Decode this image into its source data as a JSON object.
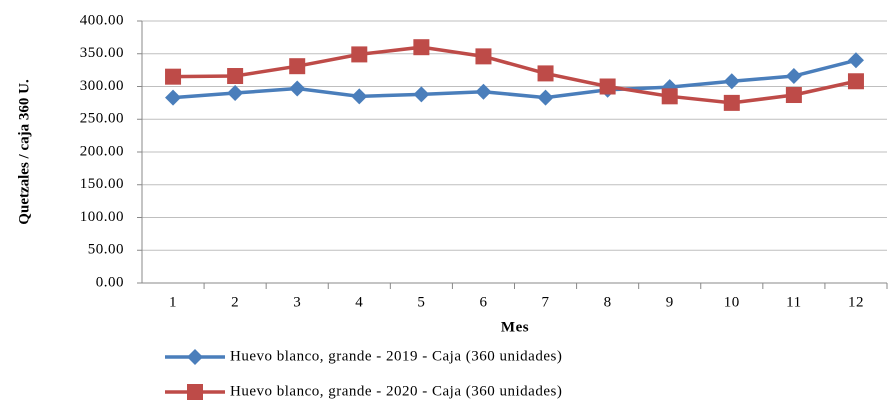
{
  "chart_data": {
    "type": "line",
    "x_label": "Mes",
    "y_label": "Quetzales / caja 360 U.",
    "categories": [
      "1",
      "2",
      "3",
      "4",
      "5",
      "6",
      "7",
      "8",
      "9",
      "10",
      "11",
      "12"
    ],
    "series": [
      {
        "name": "Huevo blanco, grande - 2019 - Caja (360 unidades)",
        "color": "#4a7ebb",
        "marker": "diamond",
        "values": [
          283,
          290,
          297,
          285,
          288,
          292,
          283,
          295,
          299,
          308,
          316,
          340
        ]
      },
      {
        "name": "Huevo blanco, grande - 2020 - Caja (360 unidades)",
        "color": "#be4b48",
        "marker": "square",
        "values": [
          315,
          316,
          331,
          349,
          360,
          346,
          320,
          300,
          285,
          275,
          287,
          308
        ]
      }
    ],
    "ylim": [
      0,
      400
    ],
    "yticks": [
      {
        "value": 0,
        "label": "0.00"
      },
      {
        "value": 50,
        "label": "50.00"
      },
      {
        "value": 100,
        "label": "100.00"
      },
      {
        "value": 150,
        "label": "150.00"
      },
      {
        "value": 200,
        "label": "200.00"
      },
      {
        "value": 250,
        "label": "250.00"
      },
      {
        "value": 300,
        "label": "300.00"
      },
      {
        "value": 350,
        "label": "350.00"
      },
      {
        "value": 400,
        "label": "400.00"
      }
    ],
    "grid": true,
    "legend": "bottom"
  }
}
